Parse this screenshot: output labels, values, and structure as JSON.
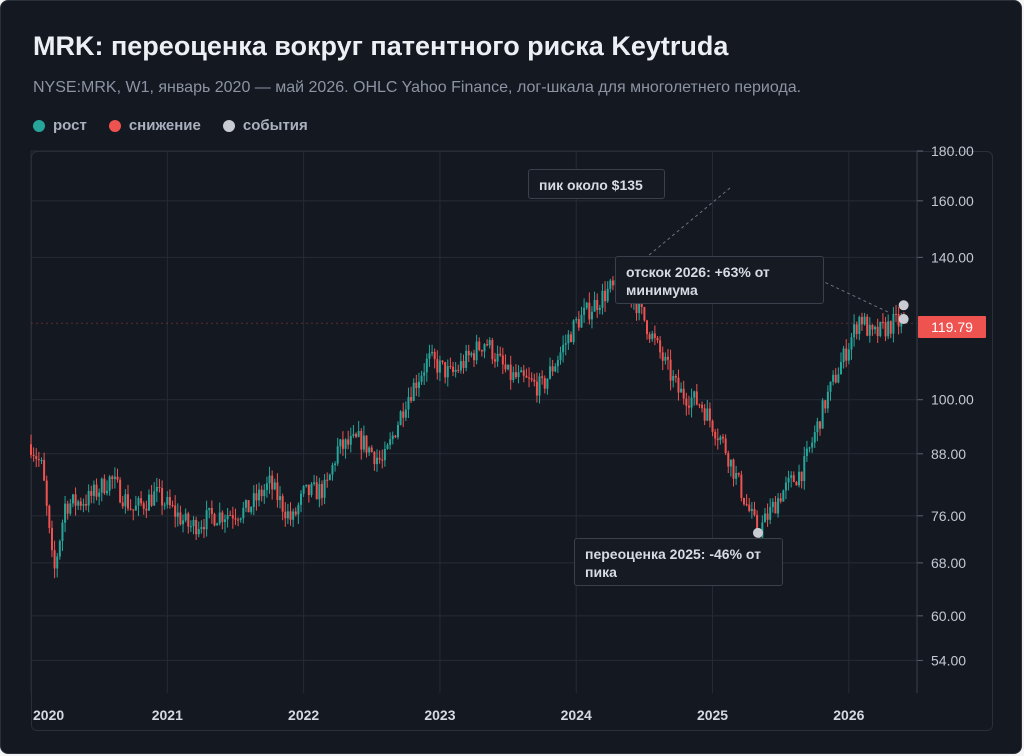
{
  "header": {
    "title": "MRK: переоценка вокруг патентного риска Keytruda",
    "subtitle": "NYSE:MRK, W1, январь 2020 — май 2026. OHLC Yahoo Finance, лог-шкала для многолетнего периода."
  },
  "legend": [
    {
      "label": "рост",
      "color": "#26a69a"
    },
    {
      "label": "снижение",
      "color": "#ef5350"
    },
    {
      "label": "события",
      "color": "#c8cbd2"
    }
  ],
  "last_price": {
    "label": "119.79",
    "color": "#ef5350"
  },
  "annotations": [
    {
      "text": "пик около $135"
    },
    {
      "text": "отскок 2026: +63% от минимума"
    },
    {
      "text": "переоценка 2025: -46% от пика"
    }
  ],
  "chart_data": {
    "type": "candlestick",
    "title": "MRK: переоценка вокруг патентного риска Keytruda",
    "subtitle": "NYSE:MRK, W1, январь 2020 — май 2026. OHLC Yahoo Finance, лог-шкала для многолетнего периода.",
    "y_scale": "log",
    "ylim": [
      50,
      180
    ],
    "y_ticks": [
      54,
      60,
      68,
      76,
      88,
      100,
      140,
      160,
      180
    ],
    "y_tick_labels": [
      "54.00",
      "60.00",
      "68.00",
      "76.00",
      "88.00",
      "100.00",
      "140.00",
      "160.00",
      "180.00"
    ],
    "x_ticks": [
      "2020",
      "2021",
      "2022",
      "2023",
      "2024",
      "2025",
      "2026"
    ],
    "xlim": [
      "2020-01",
      "2026-07"
    ],
    "grid": true,
    "legend_position": "top-left",
    "up_color": "#26a69a",
    "down_color": "#ef5350",
    "event_color": "#c8cbd2",
    "last_price": 119.79,
    "series": [
      {
        "name": "MRK",
        "weekly_close_path": [
          [
            "2020-01",
            90
          ],
          [
            "2020-02",
            85
          ],
          [
            "2020-03",
            66
          ],
          [
            "2020-04",
            78
          ],
          [
            "2020-06",
            79
          ],
          [
            "2020-08",
            83
          ],
          [
            "2020-10",
            77
          ],
          [
            "2020-12",
            80
          ],
          [
            "2021-03",
            74
          ],
          [
            "2021-05",
            76
          ],
          [
            "2021-08",
            77
          ],
          [
            "2021-10",
            82
          ],
          [
            "2021-12",
            75
          ],
          [
            "2022-01",
            80
          ],
          [
            "2022-03",
            81
          ],
          [
            "2022-04",
            89
          ],
          [
            "2022-06",
            91
          ],
          [
            "2022-08",
            86
          ],
          [
            "2022-10",
            100
          ],
          [
            "2022-12",
            110
          ],
          [
            "2023-02",
            106
          ],
          [
            "2023-05",
            115
          ],
          [
            "2023-07",
            106
          ],
          [
            "2023-10",
            103
          ],
          [
            "2024-01",
            120
          ],
          [
            "2024-04",
            130
          ],
          [
            "2024-06",
            128
          ],
          [
            "2024-08",
            114
          ],
          [
            "2024-10",
            102
          ],
          [
            "2024-12",
            99
          ],
          [
            "2025-02",
            90
          ],
          [
            "2025-04",
            78
          ],
          [
            "2025-05",
            73
          ],
          [
            "2025-07",
            80
          ],
          [
            "2025-09",
            85
          ],
          [
            "2025-11",
            100
          ],
          [
            "2026-01",
            114
          ],
          [
            "2026-02",
            122
          ],
          [
            "2026-03",
            116
          ],
          [
            "2026-05",
            120
          ],
          [
            "2026-06",
            119.79
          ]
        ]
      }
    ],
    "events": [
      {
        "date": "2024-06",
        "value": 135,
        "label": "пик около $135"
      },
      {
        "date": "2025-05",
        "value": 73,
        "label": "переоценка 2025: -46% от пика"
      },
      {
        "date": "2026-06",
        "value": 125,
        "label": "отскок 2026: +63% от минимума"
      },
      {
        "date": "2026-06",
        "value": 121
      }
    ]
  }
}
